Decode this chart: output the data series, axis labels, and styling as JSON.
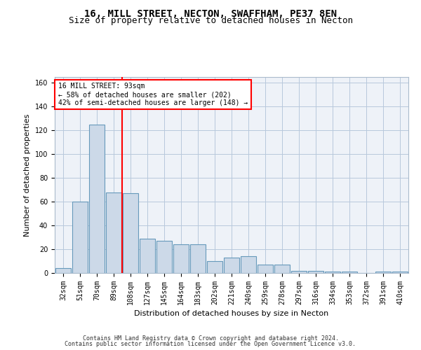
{
  "title": "16, MILL STREET, NECTON, SWAFFHAM, PE37 8EN",
  "subtitle": "Size of property relative to detached houses in Necton",
  "xlabel": "Distribution of detached houses by size in Necton",
  "ylabel": "Number of detached properties",
  "categories": [
    "32sqm",
    "51sqm",
    "70sqm",
    "89sqm",
    "108sqm",
    "127sqm",
    "145sqm",
    "164sqm",
    "183sqm",
    "202sqm",
    "221sqm",
    "240sqm",
    "259sqm",
    "278sqm",
    "297sqm",
    "316sqm",
    "334sqm",
    "353sqm",
    "372sqm",
    "391sqm",
    "410sqm"
  ],
  "values": [
    4,
    60,
    125,
    68,
    67,
    29,
    27,
    24,
    24,
    10,
    13,
    14,
    7,
    7,
    2,
    2,
    1,
    1,
    0,
    1,
    1
  ],
  "bar_color": "#ccd9e8",
  "bar_edge_color": "#6699bb",
  "grid_color": "#b8c8dc",
  "background_color": "#eef2f8",
  "vline_color": "red",
  "vline_x": 3.5,
  "annotation_text": "16 MILL STREET: 93sqm\n← 58% of detached houses are smaller (202)\n42% of semi-detached houses are larger (148) →",
  "annotation_box_color": "white",
  "annotation_box_edge_color": "red",
  "ylim": [
    0,
    165
  ],
  "yticks": [
    0,
    20,
    40,
    60,
    80,
    100,
    120,
    140,
    160
  ],
  "footer_line1": "Contains HM Land Registry data © Crown copyright and database right 2024.",
  "footer_line2": "Contains public sector information licensed under the Open Government Licence v3.0.",
  "title_fontsize": 10,
  "subtitle_fontsize": 9,
  "axis_label_fontsize": 8,
  "tick_fontsize": 7,
  "annotation_fontsize": 7,
  "footer_fontsize": 6
}
